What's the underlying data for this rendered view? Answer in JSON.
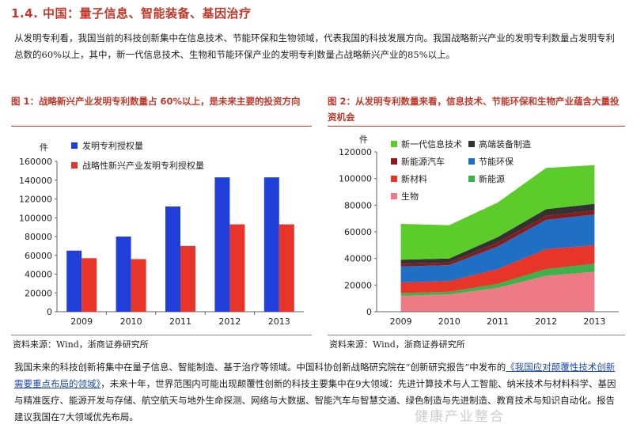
{
  "section": {
    "title": "1.4. 中国：量子信息、智能装备、基因治疗"
  },
  "paragraph1": "从发明专利看，我国当前的科技创新集中在信息技术、节能环保和生物领域，代表我国的科技发展方向。我国战略新兴产业的发明专利数量占发明专利总数的60%以上，其中，新一代信息技术、生物和节能环保产业的发明专利数量占战略新兴产业的85%以上。",
  "figure1": {
    "title": "图 1：战略新兴产业发明专利数量占 60%以上，是未来主要的投资方向",
    "source": "资料来源：Wind，浙商证券研究所",
    "unit": "件",
    "legend_position": "top-left"
  },
  "figure2": {
    "title": "图 2：从发明专利数量来看，信息技术、节能环保和生物产业蕴含大量投资机会",
    "source": "资料来源：Wind，浙商证券研究所",
    "unit": "件",
    "legend_position": "top-left"
  },
  "paragraph2": {
    "part1": "我国未来的科技创新将集中在量子信息、智能制造、基于治疗等领域。中国科协创新战略研究院在“创新研究报告”中发布的",
    "link": "《我国应对颠覆性技术创新需要重点布局的领域》",
    "part2": "，未来十年，世界范围内可能出现颠覆性创新的科技主要集中在9大领域：先进计算技术与人工智能、纳米技术与材料科学、基因与精准医疗、能源开发与存储、航空航天与地外生命探测、网络与大数据、智能汽车与智慧交通、绿色制造与先进制造、教育技术与知识自动化。报告建议我国在7大领域优先布局。"
  },
  "watermark": "健康产业整合",
  "chart_data": [
    {
      "type": "bar",
      "categories": [
        "2009",
        "2010",
        "2011",
        "2012",
        "2013"
      ],
      "series": [
        {
          "name": "发明专利授权量",
          "color": "#1f3fd8",
          "values": [
            65000,
            80000,
            112000,
            143000,
            143000
          ]
        },
        {
          "name": "战略性新兴产业发明专利授权量",
          "color": "#e8352a",
          "values": [
            57000,
            56000,
            70000,
            93000,
            93000
          ]
        }
      ],
      "ylabel": "件",
      "ylim": [
        0,
        160000
      ],
      "yticks": [
        "0",
        "20000",
        "40000",
        "60000",
        "80000",
        "100000",
        "120000",
        "140000",
        "160000"
      ],
      "grid": false,
      "legend": "top-left"
    },
    {
      "type": "area",
      "stacked": true,
      "x": [
        "2009",
        "2010",
        "2011",
        "2012",
        "2013"
      ],
      "series": [
        {
          "name": "生物",
          "color": "#ee7a85",
          "values": [
            12000,
            13000,
            18000,
            27000,
            30000
          ]
        },
        {
          "name": "新能源",
          "color": "#3bb24a",
          "values": [
            2000,
            2000,
            3000,
            5000,
            6000
          ]
        },
        {
          "name": "新材料",
          "color": "#e8352a",
          "values": [
            8000,
            8000,
            11000,
            15000,
            14000
          ]
        },
        {
          "name": "节能环保",
          "color": "#1f6fc4",
          "values": [
            12000,
            12000,
            17000,
            22000,
            23000
          ]
        },
        {
          "name": "新能源汽车",
          "color": "#8a1a1a",
          "values": [
            2000,
            2000,
            3000,
            3000,
            3000
          ]
        },
        {
          "name": "高端装备制造",
          "color": "#333333",
          "values": [
            3000,
            3000,
            4000,
            5000,
            5000
          ]
        },
        {
          "name": "新一代信息技术",
          "color": "#5ccc2a",
          "values": [
            27000,
            25000,
            26000,
            31000,
            29000
          ]
        }
      ],
      "ylabel": "件",
      "ylim": [
        0,
        120000
      ],
      "yticks": [
        "0",
        "20000",
        "40000",
        "60000",
        "80000",
        "100000",
        "120000"
      ],
      "grid": false,
      "legend": "top-left",
      "legend_order": [
        "新一代信息技术",
        "高端装备制造",
        "新能源汽车",
        "节能环保",
        "新材料",
        "新能源",
        "生物"
      ]
    }
  ]
}
